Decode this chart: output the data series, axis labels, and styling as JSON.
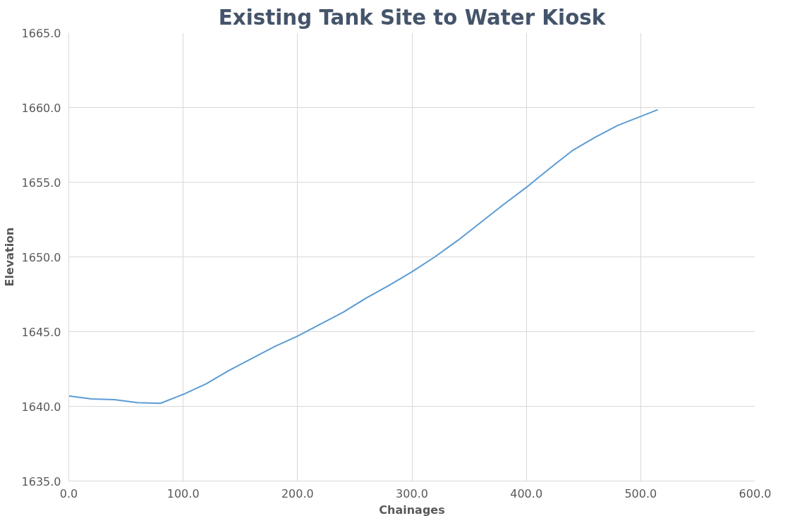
{
  "chart_data": {
    "type": "line",
    "title": "Existing Tank Site to Water Kiosk",
    "xlabel": "Chainages",
    "ylabel": "Elevation",
    "x": [
      0,
      20,
      40,
      60,
      80,
      100,
      120,
      140,
      160,
      180,
      200,
      220,
      240,
      260,
      280,
      300,
      320,
      340,
      360,
      380,
      400,
      420,
      440,
      460,
      480,
      515
    ],
    "series": [
      {
        "color": "#5b9bd5",
        "values": [
          1640.7,
          1640.5,
          1640.45,
          1640.25,
          1640.2,
          1640.8,
          1641.5,
          1642.4,
          1643.2,
          1644.0,
          1644.7,
          1645.5,
          1646.3,
          1647.25,
          1648.1,
          1649.0,
          1650.0,
          1651.1,
          1652.3,
          1653.5,
          1654.65,
          1655.9,
          1657.1,
          1658.0,
          1658.8,
          1659.85
        ]
      }
    ],
    "xlim": [
      0,
      600
    ],
    "ylim": [
      1635,
      1665
    ],
    "xticks": [
      {
        "value": 0,
        "label": "0.0"
      },
      {
        "value": 100,
        "label": "100.0"
      },
      {
        "value": 200,
        "label": "200.0"
      },
      {
        "value": 300,
        "label": "300.0"
      },
      {
        "value": 400,
        "label": "400.0"
      },
      {
        "value": 500,
        "label": "500.0"
      },
      {
        "value": 600,
        "label": "600.0"
      }
    ],
    "yticks": [
      {
        "value": 1635,
        "label": "1635.0"
      },
      {
        "value": 1640,
        "label": "1640.0"
      },
      {
        "value": 1645,
        "label": "1645.0"
      },
      {
        "value": 1650,
        "label": "1650.0"
      },
      {
        "value": 1655,
        "label": "1655.0"
      },
      {
        "value": 1660,
        "label": "1660.0"
      },
      {
        "value": 1665,
        "label": "1665.0"
      }
    ],
    "grid": true,
    "marker": "none",
    "line_style": "solid"
  }
}
